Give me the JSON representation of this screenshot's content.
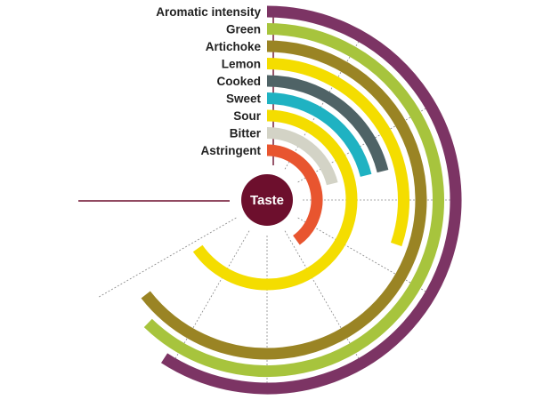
{
  "chart_data": {
    "type": "radial-bar",
    "center_label": "Taste",
    "colors": {
      "center": "#6d0f2d",
      "axis_line": "#6d0f2d",
      "guide_lines": "#8a8a8a"
    },
    "series": [
      {
        "name": "Aromatic intensity",
        "value": 213,
        "color": "#7c3464"
      },
      {
        "name": "Green",
        "value": 224,
        "color": "#a7c43d"
      },
      {
        "name": "Artichoke",
        "value": 232,
        "color": "#9a8424"
      },
      {
        "name": "Lemon",
        "value": 109,
        "color": "#f4dd00"
      },
      {
        "name": "Cooked",
        "value": 76,
        "color": "#4f6366"
      },
      {
        "name": "Sweet",
        "value": 76,
        "color": "#1fb2c2"
      },
      {
        "name": "Sour",
        "value": 235,
        "color": "#f4dd00"
      },
      {
        "name": "Bitter",
        "value": 76,
        "color": "#d3d3c6"
      },
      {
        "name": "Astringent",
        "value": 144,
        "color": "#e8552f"
      }
    ]
  }
}
